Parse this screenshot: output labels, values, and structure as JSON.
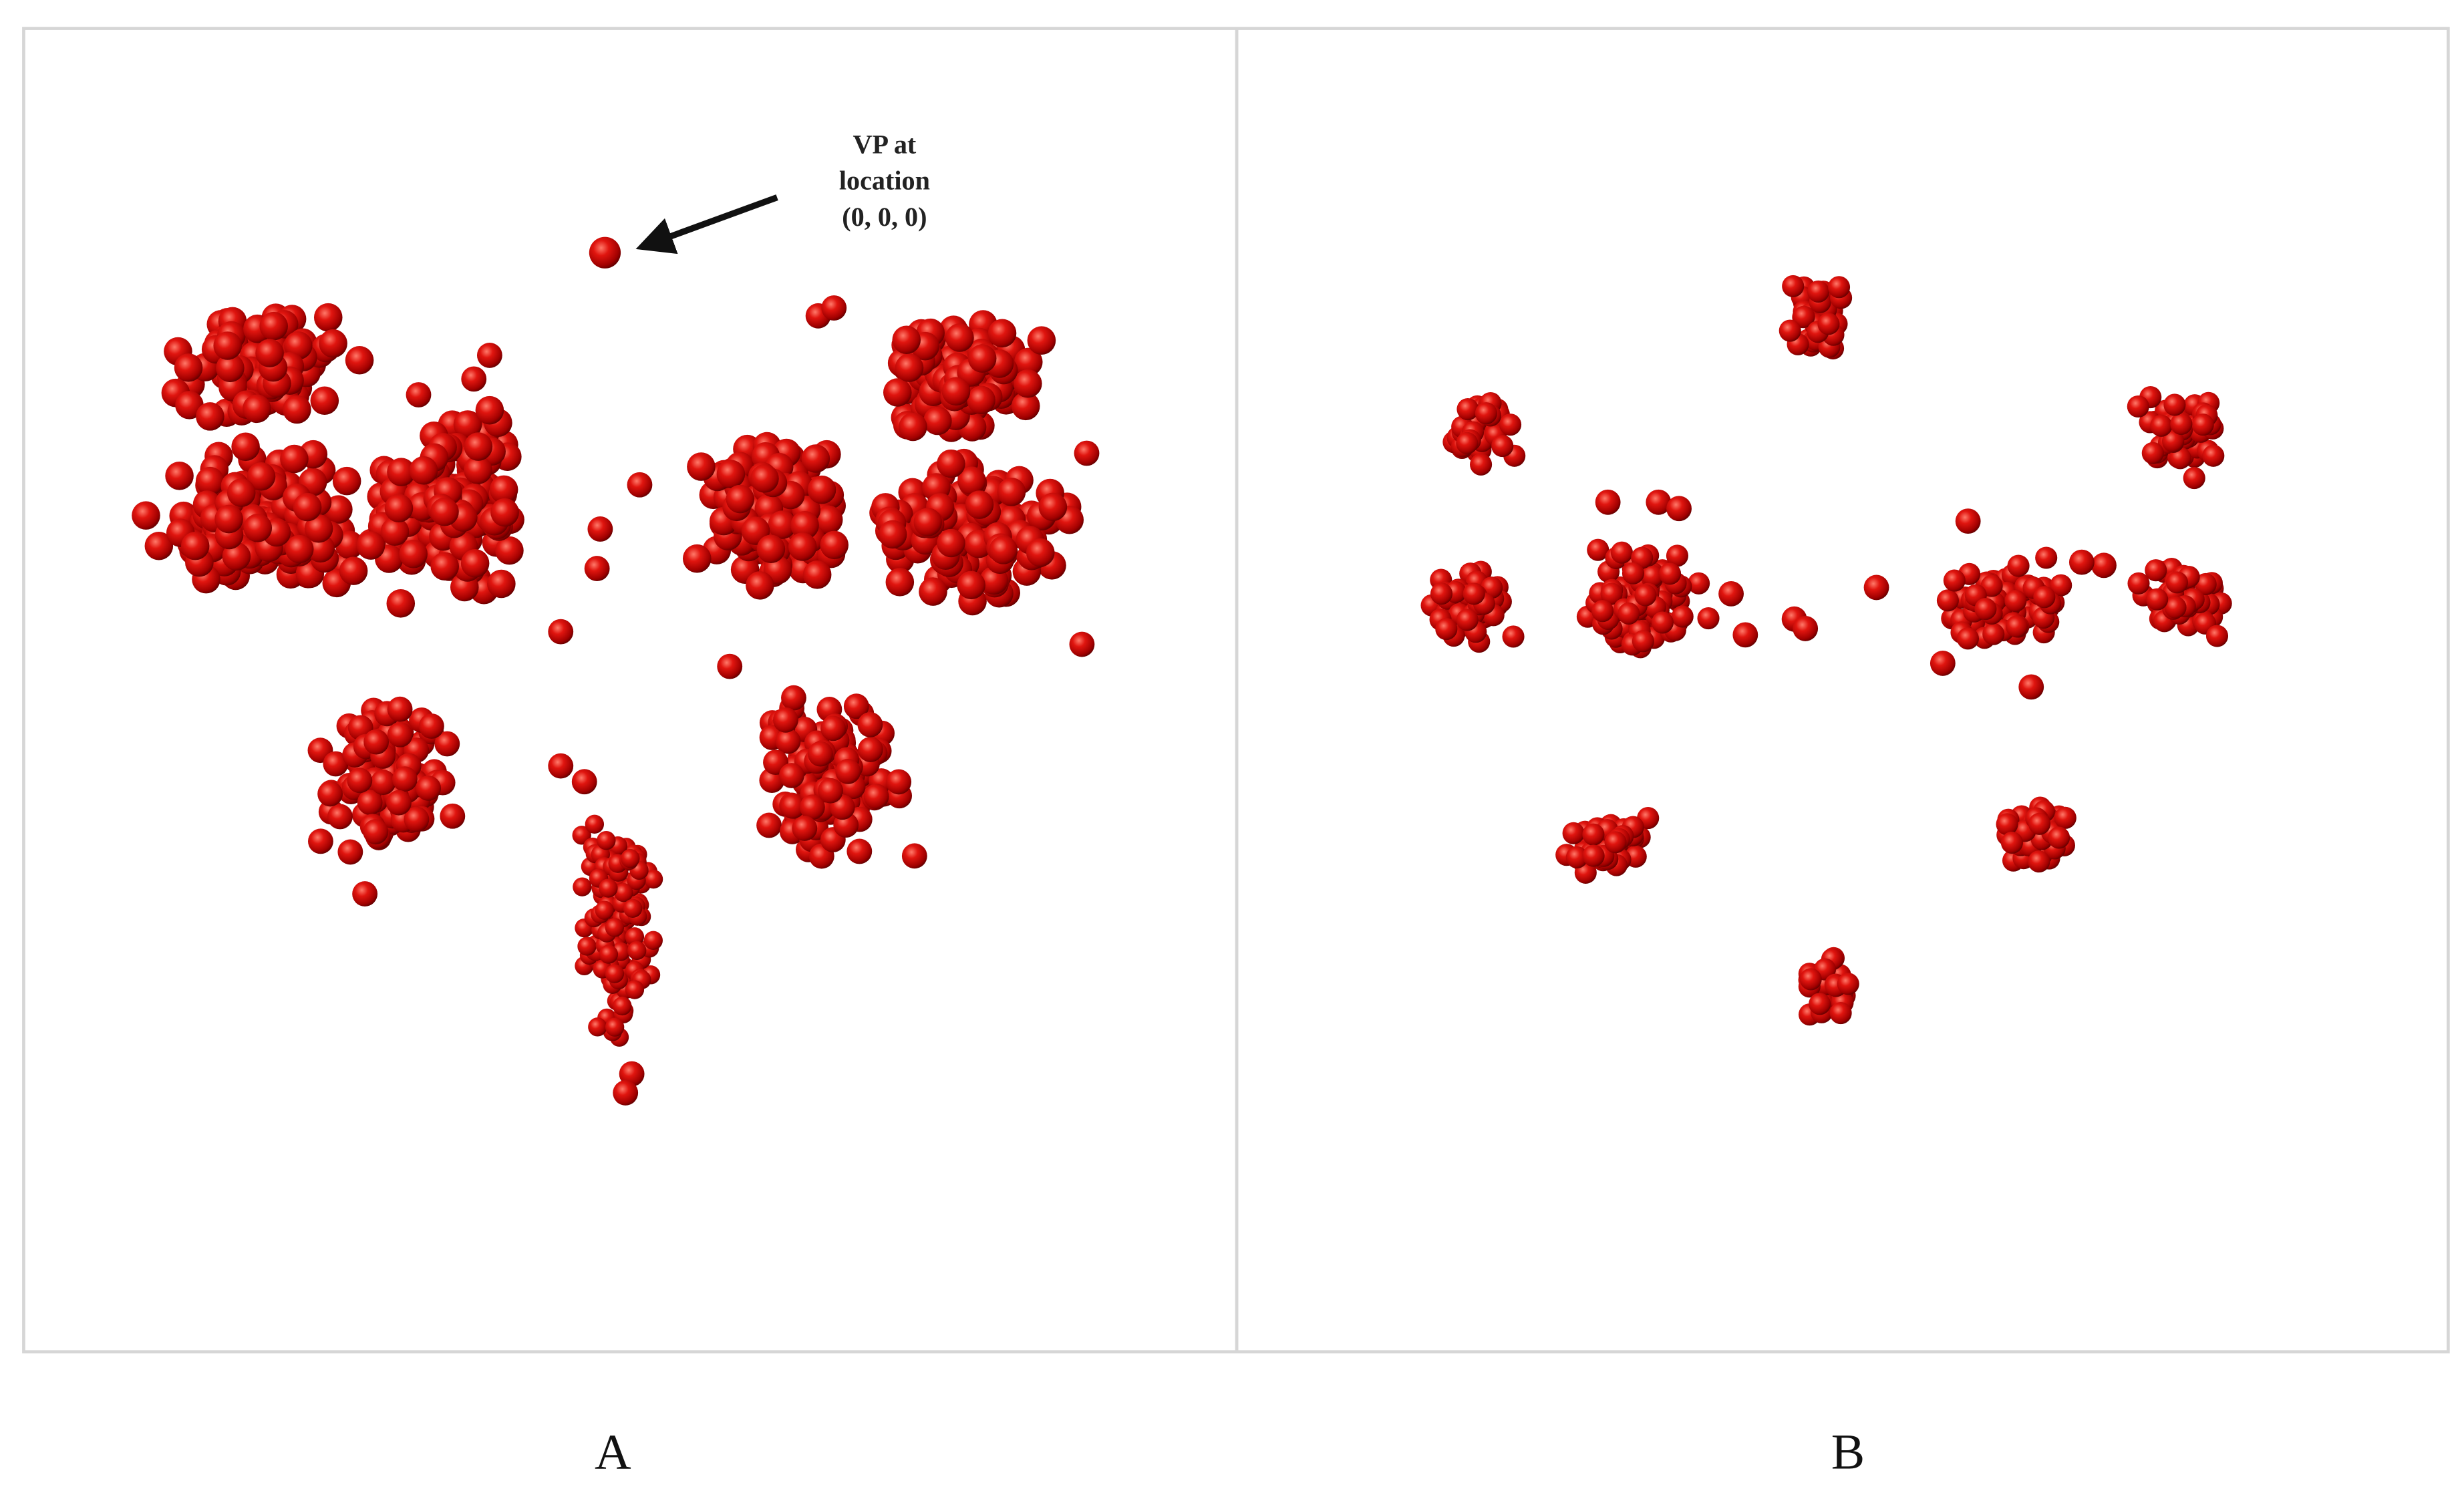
{
  "panels": [
    {
      "label": "A",
      "annotation": [
        "VP at",
        "location",
        "(0, 0, 0)"
      ]
    },
    {
      "label": "B"
    }
  ]
}
